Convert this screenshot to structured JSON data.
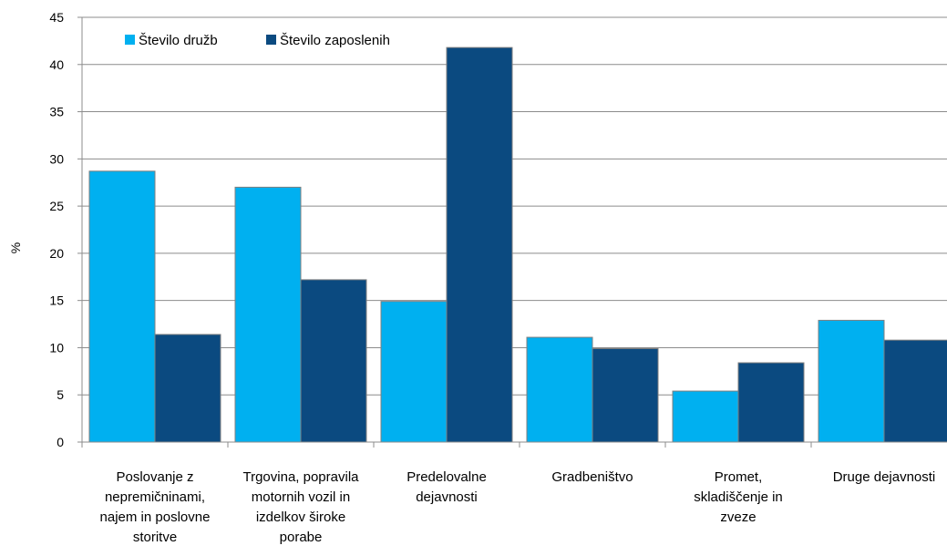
{
  "chart_data": {
    "type": "bar",
    "title": "",
    "xlabel": "",
    "ylabel": "%",
    "ylim": [
      0,
      45
    ],
    "yticks": [
      0,
      5,
      10,
      15,
      20,
      25,
      30,
      35,
      40,
      45
    ],
    "grid": true,
    "legend_position": "top-left",
    "categories": [
      [
        "Poslovanje  z",
        "nepremičninami,",
        "najem in poslovne",
        "storitve"
      ],
      [
        "Trgovina, popravila",
        "motornih vozil in",
        "izdelkov  široke",
        "porabe"
      ],
      [
        "Predelovalne",
        "dejavnosti"
      ],
      [
        "Gradbeništvo"
      ],
      [
        "Promet,",
        "skladiščenje  in",
        "zveze"
      ],
      [
        "Druge dejavnosti"
      ]
    ],
    "series": [
      {
        "name": "Število družb",
        "color": "#00B0F0",
        "values": [
          28.7,
          27.0,
          14.9,
          11.1,
          5.4,
          12.9
        ]
      },
      {
        "name": "Število zaposlenih",
        "color": "#0B4A80",
        "values": [
          11.4,
          17.2,
          41.8,
          9.9,
          8.4,
          10.8
        ]
      }
    ]
  }
}
